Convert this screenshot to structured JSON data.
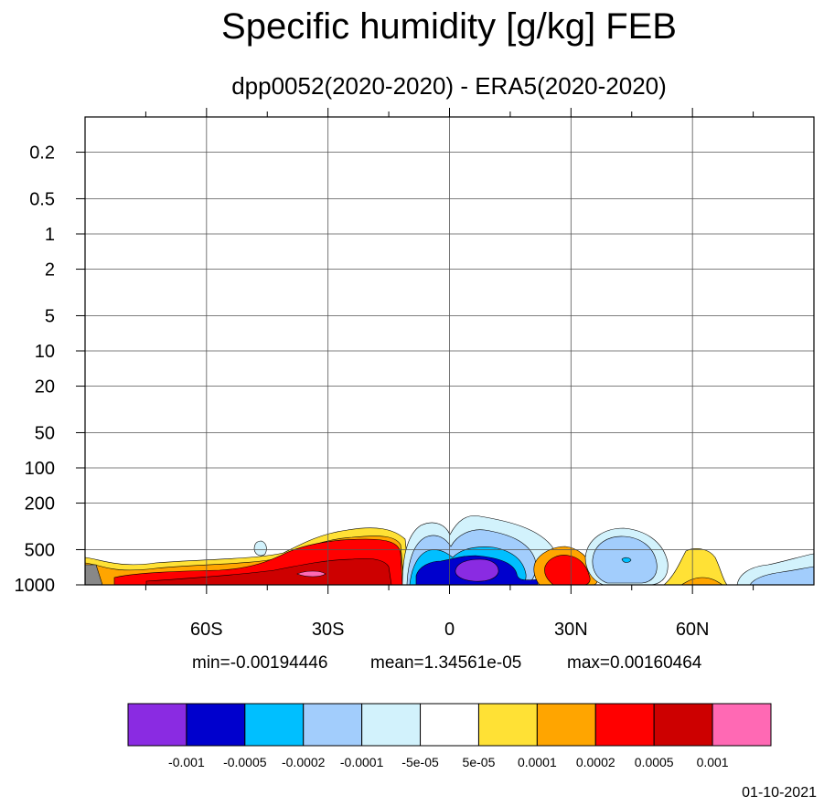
{
  "chart_data": {
    "type": "contour",
    "title": "Specific humidity [g/kg] FEB",
    "subtitle": "dpp0052(2020-2020) - ERA5(2020-2020)",
    "x_ticks": [
      "60S",
      "30S",
      "0",
      "30N",
      "60N"
    ],
    "x_tick_values": [
      -60,
      -30,
      0,
      30,
      60
    ],
    "xlim": [
      -90,
      90
    ],
    "y_ticks": [
      "0.2",
      "0.5",
      "1",
      "2",
      "5",
      "10",
      "20",
      "50",
      "100",
      "200",
      "500",
      "1000"
    ],
    "y_tick_values": [
      0.2,
      0.5,
      1,
      2,
      5,
      10,
      20,
      50,
      100,
      200,
      500,
      1000
    ],
    "y_scale": "log",
    "y_reversed": true,
    "ylim": [
      1000,
      0.1
    ],
    "grid": true,
    "stats": {
      "min": "min=-0.00194446",
      "mean": "mean=1.34561e-05",
      "max": "max=0.00160464"
    },
    "colorbar": {
      "colors": [
        "#8a2be2",
        "#0000cd",
        "#00bfff",
        "#a2cdfc",
        "#d2f2fc",
        "#ffffff",
        "#ffe135",
        "#ffa500",
        "#ff0000",
        "#cd0000",
        "#ff69b4"
      ],
      "labels": [
        "-0.001",
        "-0.0005",
        "-0.0002",
        "-0.0001",
        "-5e-05",
        "5e-05",
        "0.0001",
        "0.0002",
        "0.0005",
        "0.001"
      ]
    },
    "date": "01-10-2021"
  }
}
